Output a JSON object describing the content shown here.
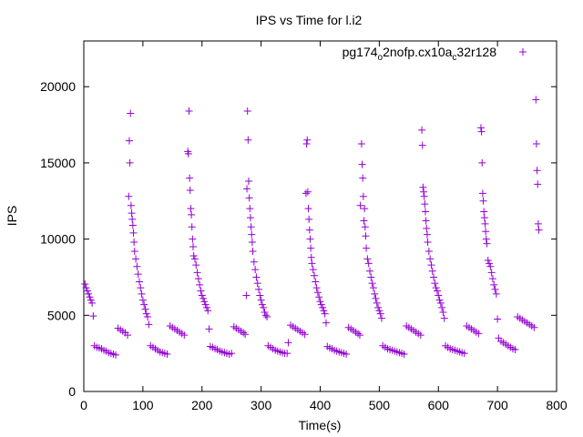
{
  "chart_data": {
    "type": "scatter",
    "title": "IPS vs Time for l.i2",
    "xlabel": "Time(s)",
    "ylabel": "IPS",
    "xlim": [
      0,
      800
    ],
    "ylim": [
      0,
      23000
    ],
    "x_ticks": [
      0,
      100,
      200,
      300,
      400,
      500,
      600,
      700,
      800
    ],
    "y_ticks": [
      0,
      5000,
      10000,
      15000,
      20000
    ],
    "grid": false,
    "legend_position": "top-right",
    "series": [
      {
        "name_parts": [
          "pg174",
          "o",
          "2nofp.cx10a",
          "c",
          "32r128"
        ],
        "color": "#9400d3",
        "marker": "plus",
        "points": [
          [
            2,
            7050
          ],
          [
            4,
            6800
          ],
          [
            6,
            6600
          ],
          [
            8,
            6400
          ],
          [
            10,
            6200
          ],
          [
            12,
            6000
          ],
          [
            14,
            5800
          ],
          [
            16,
            4950
          ],
          [
            18,
            3000
          ],
          [
            22,
            2900
          ],
          [
            26,
            2850
          ],
          [
            30,
            2800
          ],
          [
            34,
            2700
          ],
          [
            38,
            2650
          ],
          [
            42,
            2550
          ],
          [
            46,
            2500
          ],
          [
            50,
            2450
          ],
          [
            54,
            2400
          ],
          [
            58,
            4150
          ],
          [
            62,
            4050
          ],
          [
            66,
            3950
          ],
          [
            70,
            3850
          ],
          [
            74,
            3700
          ],
          [
            76,
            12800
          ],
          [
            77,
            16450
          ],
          [
            78,
            15000
          ],
          [
            79,
            18250
          ],
          [
            80,
            12200
          ],
          [
            81,
            11700
          ],
          [
            82,
            11300
          ],
          [
            83,
            10900
          ],
          [
            84,
            10400
          ],
          [
            85,
            9800
          ],
          [
            86,
            9200
          ],
          [
            88,
            8700
          ],
          [
            90,
            8200
          ],
          [
            92,
            7700
          ],
          [
            94,
            7200
          ],
          [
            96,
            6800
          ],
          [
            98,
            6400
          ],
          [
            100,
            6000
          ],
          [
            102,
            5700
          ],
          [
            104,
            5400
          ],
          [
            106,
            5100
          ],
          [
            108,
            4900
          ],
          [
            110,
            4400
          ],
          [
            113,
            3000
          ],
          [
            117,
            2900
          ],
          [
            121,
            2800
          ],
          [
            125,
            2700
          ],
          [
            129,
            2600
          ],
          [
            133,
            2550
          ],
          [
            137,
            2500
          ],
          [
            141,
            2450
          ],
          [
            146,
            4300
          ],
          [
            150,
            4200
          ],
          [
            154,
            4100
          ],
          [
            158,
            4000
          ],
          [
            162,
            3900
          ],
          [
            166,
            3800
          ],
          [
            170,
            3700
          ],
          [
            176,
            15750
          ],
          [
            177,
            15600
          ],
          [
            178,
            18400
          ],
          [
            179,
            14000
          ],
          [
            180,
            13200
          ],
          [
            181,
            12000
          ],
          [
            182,
            11600
          ],
          [
            183,
            10800
          ],
          [
            184,
            10000
          ],
          [
            185,
            9500
          ],
          [
            186,
            8900
          ],
          [
            188,
            8700
          ],
          [
            190,
            8300
          ],
          [
            192,
            7800
          ],
          [
            194,
            7400
          ],
          [
            196,
            7000
          ],
          [
            198,
            6600
          ],
          [
            200,
            6300
          ],
          [
            202,
            6100
          ],
          [
            204,
            5900
          ],
          [
            206,
            5700
          ],
          [
            208,
            5500
          ],
          [
            210,
            5300
          ],
          [
            212,
            4100
          ],
          [
            214,
            2950
          ],
          [
            218,
            2900
          ],
          [
            222,
            2800
          ],
          [
            226,
            2750
          ],
          [
            230,
            2650
          ],
          [
            234,
            2600
          ],
          [
            238,
            2550
          ],
          [
            242,
            2500
          ],
          [
            246,
            2450
          ],
          [
            250,
            2500
          ],
          [
            254,
            4250
          ],
          [
            258,
            4150
          ],
          [
            262,
            4050
          ],
          [
            266,
            3950
          ],
          [
            270,
            3850
          ],
          [
            273,
            3750
          ],
          [
            275,
            6300
          ],
          [
            276,
            13300
          ],
          [
            277,
            18400
          ],
          [
            278,
            16500
          ],
          [
            279,
            13800
          ],
          [
            280,
            12700
          ],
          [
            281,
            12000
          ],
          [
            282,
            11400
          ],
          [
            283,
            10800
          ],
          [
            284,
            10300
          ],
          [
            285,
            9800
          ],
          [
            286,
            9200
          ],
          [
            288,
            8500
          ],
          [
            290,
            8000
          ],
          [
            292,
            7500
          ],
          [
            294,
            7100
          ],
          [
            296,
            6700
          ],
          [
            298,
            6300
          ],
          [
            300,
            6000
          ],
          [
            302,
            5700
          ],
          [
            304,
            5500
          ],
          [
            306,
            5200
          ],
          [
            308,
            5000
          ],
          [
            310,
            4900
          ],
          [
            312,
            3000
          ],
          [
            316,
            2900
          ],
          [
            320,
            2800
          ],
          [
            324,
            2700
          ],
          [
            328,
            2650
          ],
          [
            332,
            2600
          ],
          [
            336,
            2550
          ],
          [
            340,
            2500
          ],
          [
            344,
            2500
          ],
          [
            346,
            3200
          ],
          [
            350,
            4350
          ],
          [
            354,
            4250
          ],
          [
            358,
            4150
          ],
          [
            362,
            4050
          ],
          [
            366,
            3950
          ],
          [
            370,
            3850
          ],
          [
            374,
            3750
          ],
          [
            376,
            13000
          ],
          [
            377,
            16250
          ],
          [
            378,
            16500
          ],
          [
            379,
            13100
          ],
          [
            380,
            12000
          ],
          [
            381,
            11300
          ],
          [
            382,
            10600
          ],
          [
            383,
            10000
          ],
          [
            384,
            9400
          ],
          [
            385,
            8800
          ],
          [
            386,
            8400
          ],
          [
            388,
            8000
          ],
          [
            390,
            7600
          ],
          [
            392,
            7200
          ],
          [
            394,
            6800
          ],
          [
            396,
            6500
          ],
          [
            398,
            6200
          ],
          [
            400,
            5900
          ],
          [
            402,
            5700
          ],
          [
            404,
            5500
          ],
          [
            406,
            5300
          ],
          [
            408,
            5100
          ],
          [
            410,
            4500
          ],
          [
            412,
            2950
          ],
          [
            416,
            2850
          ],
          [
            420,
            2800
          ],
          [
            424,
            2700
          ],
          [
            428,
            2650
          ],
          [
            432,
            2600
          ],
          [
            436,
            2550
          ],
          [
            440,
            2500
          ],
          [
            444,
            2450
          ],
          [
            448,
            4200
          ],
          [
            452,
            4100
          ],
          [
            456,
            4000
          ],
          [
            460,
            3900
          ],
          [
            464,
            3800
          ],
          [
            467,
            3700
          ],
          [
            468,
            12200
          ],
          [
            470,
            16250
          ],
          [
            471,
            14900
          ],
          [
            472,
            14000
          ],
          [
            473,
            12800
          ],
          [
            474,
            11200
          ],
          [
            475,
            12000
          ],
          [
            476,
            10800
          ],
          [
            477,
            10200
          ],
          [
            478,
            9400
          ],
          [
            480,
            8700
          ],
          [
            482,
            8400
          ],
          [
            484,
            7900
          ],
          [
            486,
            7500
          ],
          [
            488,
            7100
          ],
          [
            490,
            6800
          ],
          [
            492,
            6400
          ],
          [
            494,
            6100
          ],
          [
            496,
            5800
          ],
          [
            498,
            5500
          ],
          [
            500,
            5300
          ],
          [
            502,
            5100
          ],
          [
            504,
            4800
          ],
          [
            506,
            3000
          ],
          [
            510,
            2900
          ],
          [
            514,
            2800
          ],
          [
            518,
            2750
          ],
          [
            522,
            2700
          ],
          [
            526,
            2650
          ],
          [
            530,
            2600
          ],
          [
            534,
            2550
          ],
          [
            538,
            2500
          ],
          [
            542,
            2450
          ],
          [
            546,
            4300
          ],
          [
            550,
            4200
          ],
          [
            554,
            4100
          ],
          [
            558,
            4000
          ],
          [
            562,
            3900
          ],
          [
            566,
            3800
          ],
          [
            570,
            3700
          ],
          [
            572,
            17150
          ],
          [
            573,
            16150
          ],
          [
            574,
            13400
          ],
          [
            575,
            13100
          ],
          [
            576,
            12800
          ],
          [
            577,
            12300
          ],
          [
            578,
            11800
          ],
          [
            579,
            11200
          ],
          [
            580,
            10700
          ],
          [
            581,
            10300
          ],
          [
            582,
            9800
          ],
          [
            584,
            9200
          ],
          [
            586,
            8700
          ],
          [
            588,
            8300
          ],
          [
            590,
            7900
          ],
          [
            592,
            7500
          ],
          [
            594,
            7100
          ],
          [
            596,
            6800
          ],
          [
            598,
            6600
          ],
          [
            600,
            6300
          ],
          [
            602,
            6000
          ],
          [
            604,
            5800
          ],
          [
            606,
            5500
          ],
          [
            608,
            5200
          ],
          [
            610,
            4800
          ],
          [
            612,
            3000
          ],
          [
            616,
            2900
          ],
          [
            620,
            2800
          ],
          [
            624,
            2750
          ],
          [
            628,
            2700
          ],
          [
            632,
            2650
          ],
          [
            636,
            2600
          ],
          [
            640,
            2550
          ],
          [
            644,
            2500
          ],
          [
            648,
            4300
          ],
          [
            652,
            4200
          ],
          [
            656,
            4100
          ],
          [
            660,
            4000
          ],
          [
            664,
            3900
          ],
          [
            668,
            3800
          ],
          [
            672,
            17300
          ],
          [
            673,
            17050
          ],
          [
            674,
            15000
          ],
          [
            675,
            13000
          ],
          [
            676,
            12500
          ],
          [
            677,
            11800
          ],
          [
            678,
            11400
          ],
          [
            679,
            11000
          ],
          [
            680,
            10500
          ],
          [
            681,
            10000
          ],
          [
            682,
            9700
          ],
          [
            684,
            8600
          ],
          [
            686,
            8400
          ],
          [
            688,
            8200
          ],
          [
            690,
            7800
          ],
          [
            692,
            7400
          ],
          [
            694,
            7000
          ],
          [
            696,
            6700
          ],
          [
            698,
            6400
          ],
          [
            700,
            4750
          ],
          [
            702,
            3500
          ],
          [
            706,
            3300
          ],
          [
            710,
            3200
          ],
          [
            714,
            3100
          ],
          [
            718,
            3000
          ],
          [
            722,
            2900
          ],
          [
            726,
            2800
          ],
          [
            730,
            2750
          ],
          [
            734,
            4900
          ],
          [
            738,
            4800
          ],
          [
            742,
            4700
          ],
          [
            746,
            4600
          ],
          [
            750,
            4500
          ],
          [
            754,
            4400
          ],
          [
            758,
            4300
          ],
          [
            762,
            4200
          ],
          [
            765,
            19150
          ],
          [
            766,
            16250
          ],
          [
            767,
            14500
          ],
          [
            768,
            13600
          ],
          [
            769,
            11000
          ],
          [
            770,
            10600
          ]
        ]
      }
    ]
  }
}
